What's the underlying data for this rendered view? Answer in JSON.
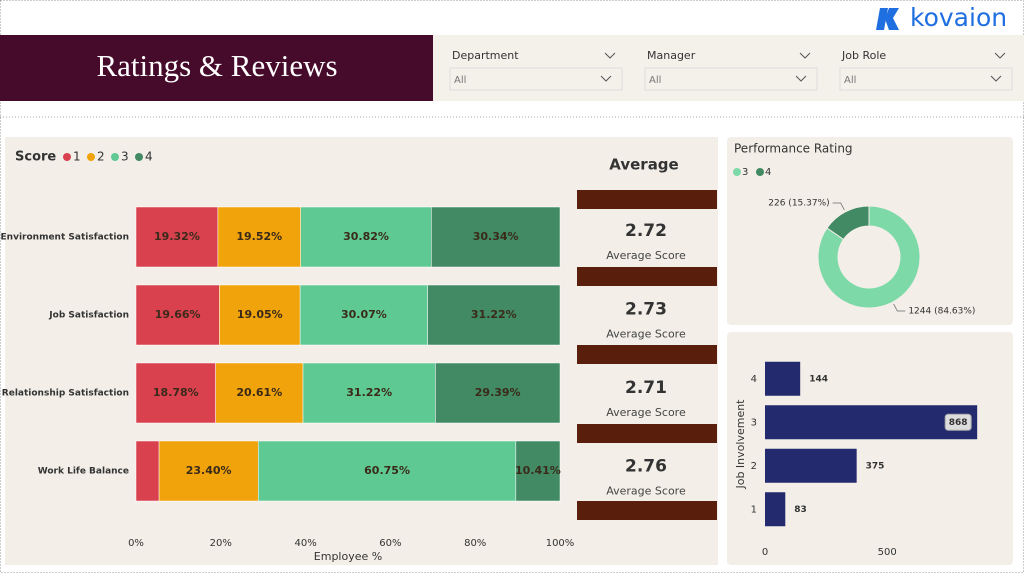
{
  "header": {
    "title": "Ratings & Reviews",
    "brand": "kovaion"
  },
  "filters": [
    {
      "label": "Department",
      "value": "All"
    },
    {
      "label": "Manager",
      "value": "All"
    },
    {
      "label": "Job Role",
      "value": "All"
    }
  ],
  "averages": {
    "title": "Average",
    "items": [
      {
        "value": 2.72,
        "label": "Average Score"
      },
      {
        "value": 2.73,
        "label": "Average Score"
      },
      {
        "value": 2.71,
        "label": "Average Score"
      },
      {
        "value": 2.76,
        "label": "Average Score"
      }
    ]
  },
  "chart_data": [
    {
      "type": "bar",
      "orientation": "horizontal",
      "stacked": true,
      "legend_title": "Score",
      "categories": [
        "Environment Satisfaction",
        "Job Satisfaction",
        "Relationship Satisfaction",
        "Work Life Balance"
      ],
      "series": [
        {
          "name": "1",
          "color": "#d9414f",
          "values": [
            19.32,
            19.66,
            18.78,
            5.44
          ],
          "value_labels": [
            "19.32%",
            "19.66%",
            "18.78%",
            null
          ]
        },
        {
          "name": "2",
          "color": "#f0a30a",
          "values": [
            19.52,
            19.05,
            20.61,
            23.4
          ],
          "value_labels": [
            "19.52%",
            "19.05%",
            "20.61%",
            "23.40%"
          ]
        },
        {
          "name": "3",
          "color": "#5fc994",
          "values": [
            30.82,
            30.07,
            31.22,
            60.75
          ],
          "value_labels": [
            "30.82%",
            "30.07%",
            "31.22%",
            "60.75%"
          ]
        },
        {
          "name": "4",
          "color": "#418a64",
          "values": [
            30.34,
            31.22,
            29.39,
            10.41
          ],
          "value_labels": [
            "30.34%",
            "31.22%",
            "29.39%",
            "10.41%"
          ]
        }
      ],
      "xlim": [
        0,
        100
      ],
      "xticks": [
        {
          "value": 0,
          "label": "0%"
        },
        {
          "value": 20,
          "label": "20%"
        },
        {
          "value": 40,
          "label": "40%"
        },
        {
          "value": 60,
          "label": "60%"
        },
        {
          "value": 80,
          "label": "80%"
        },
        {
          "value": 100,
          "label": "100%"
        }
      ],
      "xlabel": "Employee %"
    },
    {
      "type": "pie",
      "donut": true,
      "title": "Performance Rating",
      "categories": [
        "3",
        "4"
      ],
      "values": [
        1244,
        226
      ],
      "value_labels": [
        "1244 (84.63%)",
        "226 (15.37%)"
      ],
      "colors": [
        "#7dd9a8",
        "#418a64"
      ]
    },
    {
      "type": "bar",
      "orientation": "horizontal",
      "ylabel": "Job Involvement",
      "categories": [
        "4",
        "3",
        "2",
        "1"
      ],
      "values": [
        144,
        868,
        375,
        83
      ],
      "color": "#232a6e",
      "xlim": [
        0,
        900
      ],
      "xticks": [
        0,
        500
      ]
    }
  ]
}
